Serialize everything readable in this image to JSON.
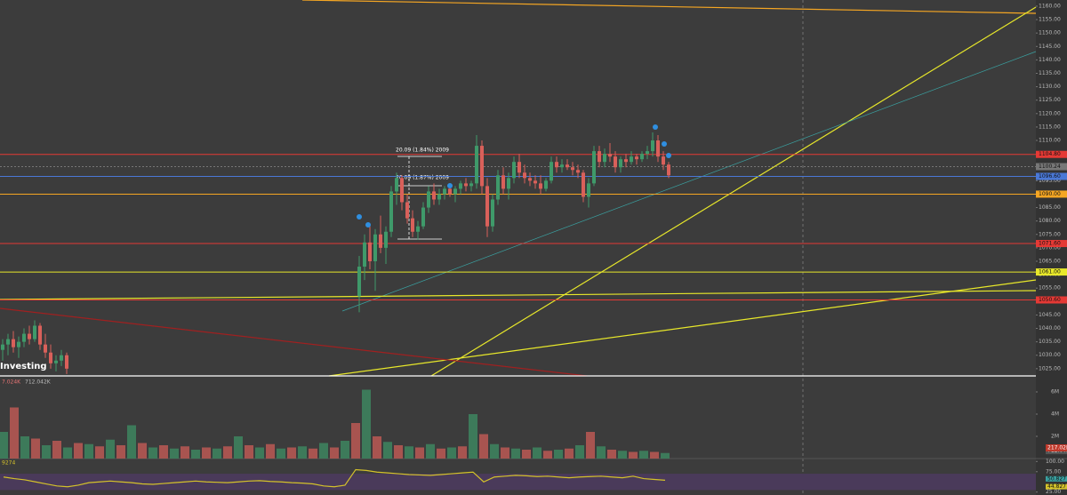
{
  "chart_data": {
    "type": "candlestick",
    "brand": "Investing",
    "up_color": "#3f9a6a",
    "down_color": "#d9605a",
    "ylim": [
      1022.3,
      1162.3
    ],
    "yticks": [
      {
        "value": 1025,
        "label": "1025.00"
      },
      {
        "value": 1030,
        "label": "1030.00"
      },
      {
        "value": 1035,
        "label": "1035.00"
      },
      {
        "value": 1040,
        "label": "1040.00"
      },
      {
        "value": 1045,
        "label": "1045.00"
      },
      {
        "value": 1050,
        "label": "1050.00"
      },
      {
        "value": 1055,
        "label": "1055.00"
      },
      {
        "value": 1060,
        "label": "1060.00"
      },
      {
        "value": 1065,
        "label": "1065.00"
      },
      {
        "value": 1070,
        "label": "1070.00"
      },
      {
        "value": 1075,
        "label": "1075.00"
      },
      {
        "value": 1080,
        "label": "1080.00"
      },
      {
        "value": 1085,
        "label": "1085.00"
      },
      {
        "value": 1090,
        "label": "1090.00"
      },
      {
        "value": 1095,
        "label": "1095.00"
      },
      {
        "value": 1100,
        "label": "1100.00"
      },
      {
        "value": 1105,
        "label": "1105.00"
      },
      {
        "value": 1110,
        "label": "1110.00"
      },
      {
        "value": 1115,
        "label": "1115.00"
      },
      {
        "value": 1120,
        "label": "1120.00"
      },
      {
        "value": 1125,
        "label": "1125.00"
      },
      {
        "value": 1130,
        "label": "1130.00"
      },
      {
        "value": 1135,
        "label": "1135.00"
      },
      {
        "value": 1140,
        "label": "1140.00"
      },
      {
        "value": 1145,
        "label": "1145.00"
      },
      {
        "value": 1150,
        "label": "1150.00"
      },
      {
        "value": 1155,
        "label": "1155.00"
      },
      {
        "value": 1160,
        "label": "1160.00"
      }
    ],
    "price_lines": [
      {
        "value": 1104.8,
        "label": "1104.80",
        "color": "#e53935"
      },
      {
        "value": 1100.24,
        "label": "1100.24",
        "color": "#777777"
      },
      {
        "value": 1096.6,
        "label": "1096.60",
        "color": "#4a78d6"
      },
      {
        "value": 1090,
        "label": "1090.00",
        "color": "#f5a623"
      },
      {
        "value": 1071.6,
        "label": "1071.60",
        "color": "#e53935"
      },
      {
        "value": 1061,
        "label": "1061.00",
        "color": "#e8e82a"
      },
      {
        "value": 1050.6,
        "label": "1050.60",
        "color": "#e53935"
      }
    ],
    "annotations": [
      "20.09 (1.84%) 2009",
      "20.09 (1.87%) 2009"
    ],
    "series": [
      {
        "open": [
          1032,
          1034,
          1036,
          1033,
          1035,
          1038,
          1036,
          1041,
          1034,
          1031,
          1027,
          1028,
          1030
        ],
        "high": [
          1036,
          1038,
          1039,
          1037,
          1040,
          1041,
          1043,
          1042,
          1038,
          1034,
          1030,
          1032,
          1031
        ],
        "low": [
          1028,
          1030,
          1031,
          1029,
          1033,
          1034,
          1035,
          1032,
          1029,
          1025,
          1024,
          1026,
          1023
        ],
        "close": [
          1034,
          1036,
          1033,
          1035,
          1038,
          1036,
          1041,
          1034,
          1031,
          1027,
          1028,
          1030,
          1025
        ]
      },
      {
        "open": [
          1052,
          1063,
          1072,
          1065,
          1075,
          1070,
          1076,
          1091,
          1096,
          1087,
          1081,
          1076,
          1078,
          1085,
          1091,
          1088,
          1090,
          1092,
          1090,
          1092,
          1094,
          1093,
          1094,
          1108,
          1093,
          1078,
          1088,
          1097,
          1092,
          1096,
          1102,
          1098,
          1096,
          1095,
          1094,
          1092,
          1095,
          1102,
          1100,
          1101,
          1100,
          1099,
          1098,
          1089,
          1094,
          1106,
          1102,
          1105,
          1104,
          1100,
          1103,
          1102,
          1104,
          1103,
          1105,
          1106,
          1110,
          1104,
          1101
        ],
        "high": [
          1067,
          1075,
          1078,
          1077,
          1082,
          1078,
          1093,
          1098,
          1097,
          1090,
          1084,
          1080,
          1087,
          1093,
          1094,
          1092,
          1093,
          1094,
          1093,
          1095,
          1096,
          1095,
          1112,
          1110,
          1096,
          1090,
          1099,
          1100,
          1098,
          1104,
          1105,
          1101,
          1098,
          1097,
          1097,
          1096,
          1104,
          1104,
          1103,
          1103,
          1102,
          1101,
          1099,
          1096,
          1108,
          1108,
          1107,
          1109,
          1106,
          1104,
          1105,
          1106,
          1105,
          1106,
          1108,
          1113,
          1112,
          1106,
          1102
        ],
        "low": [
          1046,
          1058,
          1062,
          1054,
          1068,
          1064,
          1074,
          1086,
          1084,
          1079,
          1074,
          1073,
          1077,
          1083,
          1086,
          1086,
          1088,
          1089,
          1087,
          1090,
          1091,
          1091,
          1092,
          1090,
          1074,
          1076,
          1086,
          1090,
          1088,
          1094,
          1096,
          1094,
          1093,
          1092,
          1090,
          1091,
          1094,
          1098,
          1098,
          1099,
          1097,
          1096,
          1087,
          1085,
          1093,
          1100,
          1100,
          1102,
          1098,
          1098,
          1100,
          1101,
          1101,
          1102,
          1103,
          1104,
          1102,
          1099,
          1096
        ],
        "close": [
          1063,
          1072,
          1065,
          1075,
          1070,
          1076,
          1091,
          1096,
          1087,
          1081,
          1076,
          1078,
          1085,
          1091,
          1088,
          1090,
          1092,
          1090,
          1092,
          1094,
          1093,
          1094,
          1108,
          1093,
          1078,
          1088,
          1097,
          1092,
          1096,
          1102,
          1098,
          1096,
          1095,
          1094,
          1092,
          1095,
          1102,
          1100,
          1101,
          1100,
          1099,
          1098,
          1089,
          1094,
          1106,
          1102,
          1105,
          1104,
          1100,
          1103,
          1102,
          1104,
          1103,
          1105,
          1106,
          1110,
          1104,
          1101,
          1097
        ]
      }
    ],
    "volume": {
      "header": [
        "7.024K",
        "712.042K"
      ],
      "ylim": [
        0,
        7.04
      ],
      "yticks": [
        {
          "value": 2,
          "label": "2M"
        },
        {
          "value": 4,
          "label": "4M"
        },
        {
          "value": 6,
          "label": "6M"
        }
      ],
      "value_labels": [
        {
          "value": 0.71204,
          "label": "712.04K",
          "color": "#555555"
        },
        {
          "value": 0.21702,
          "label": "217.02K",
          "color": "#c0392b"
        }
      ],
      "series": [
        {
          "color": "#3d7a5a",
          "values": [
            2.4,
            null,
            2.0,
            null,
            1.2,
            null,
            1.0,
            null,
            1.3,
            null,
            1.7,
            null,
            3.0,
            null,
            1.0,
            null,
            0.9,
            null,
            0.8,
            null,
            0.9,
            null,
            2.0,
            null,
            1.0,
            null,
            0.9,
            null,
            1.1,
            null,
            1.4,
            null,
            1.6,
            null,
            6.2,
            null,
            1.5,
            null,
            1.1,
            null,
            1.3,
            null,
            1.0,
            null,
            4.0,
            null,
            1.3,
            null,
            0.9,
            null,
            1.0,
            null,
            0.8,
            null,
            1.2,
            null,
            1.1,
            null,
            0.7,
            null,
            0.7,
            null,
            0.5
          ]
        },
        {
          "color": "#a85450",
          "values": [
            null,
            4.6,
            null,
            1.8,
            null,
            1.6,
            null,
            1.4,
            null,
            1.1,
            null,
            1.2,
            null,
            1.4,
            null,
            1.2,
            null,
            1.1,
            null,
            1.0,
            null,
            1.1,
            null,
            1.2,
            null,
            1.3,
            null,
            1.0,
            null,
            0.9,
            null,
            1.0,
            null,
            3.2,
            null,
            2.0,
            null,
            1.2,
            null,
            1.0,
            null,
            0.9,
            null,
            1.1,
            null,
            2.2,
            null,
            1.0,
            null,
            0.8,
            null,
            0.7,
            null,
            0.9,
            null,
            2.4,
            null,
            0.8,
            null,
            0.6,
            null,
            0.6,
            null
          ]
        }
      ]
    },
    "oscillator": {
      "header": "9274",
      "color": "#d4c22a",
      "band": [
        30,
        70
      ],
      "ylim": [
        20,
        105
      ],
      "yticks": [
        {
          "value": 25,
          "label": "25.00"
        },
        {
          "value": 75,
          "label": "75.00"
        },
        {
          "value": 100,
          "label": "100.00"
        }
      ],
      "value_labels": [
        {
          "value": 50.827,
          "label": "50.827",
          "color": "#3aa0a0"
        },
        {
          "value": 44.827,
          "label": "44.827",
          "color": "#d4c22a"
        }
      ],
      "values": [
        62,
        58,
        55,
        50,
        45,
        40,
        38,
        42,
        48,
        50,
        52,
        50,
        48,
        45,
        44,
        46,
        48,
        50,
        52,
        50,
        49,
        48,
        50,
        52,
        53,
        51,
        50,
        48,
        47,
        45,
        40,
        38,
        42,
        80,
        78,
        74,
        72,
        70,
        68,
        67,
        66,
        68,
        70,
        72,
        74,
        50,
        62,
        64,
        66,
        65,
        63,
        64,
        62,
        60,
        62,
        63,
        64,
        62,
        60,
        64,
        58,
        56,
        54
      ]
    }
  }
}
